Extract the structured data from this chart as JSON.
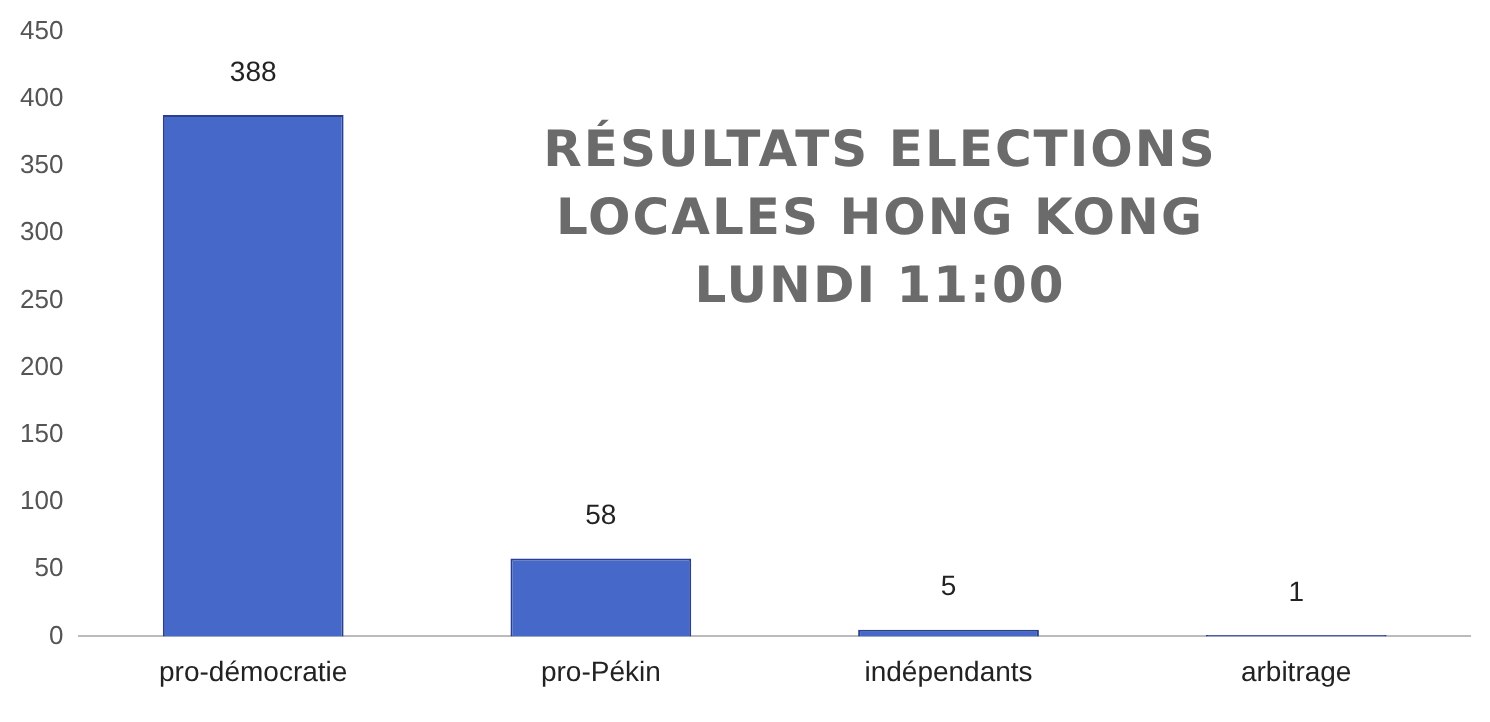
{
  "chart_data": {
    "type": "bar",
    "title": "RÉSULTATS  ELECTIONS\nLOCALES HONG KONG\nLUNDI 11:00",
    "categories": [
      "pro-démocratie",
      "pro-Pékin",
      "indépendants",
      "arbitrage"
    ],
    "values": [
      388,
      58,
      5,
      1
    ],
    "color": "#4668c8",
    "ylim": [
      0,
      450
    ],
    "yticks": [
      0,
      50,
      100,
      150,
      200,
      250,
      300,
      350,
      400,
      450
    ],
    "grid": false,
    "data_labels": true
  }
}
